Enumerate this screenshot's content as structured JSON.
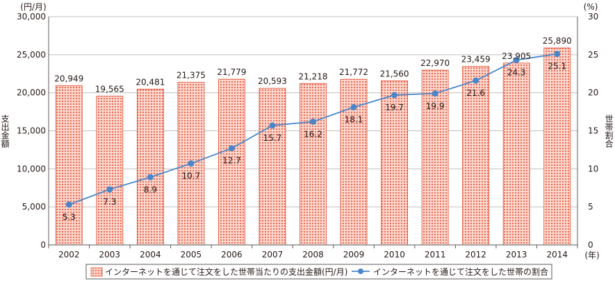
{
  "chart_data": {
    "type": "bar",
    "categories": [
      "2002",
      "2003",
      "2004",
      "2005",
      "2006",
      "2007",
      "2008",
      "2009",
      "2010",
      "2011",
      "2012",
      "2013",
      "2014"
    ],
    "series": [
      {
        "name": "インターネットを通じて注文をした世帯当たりの支出金額(円/月)",
        "type": "bar",
        "axis": "left",
        "values": [
          20949,
          19565,
          20481,
          21375,
          21779,
          20593,
          21218,
          21772,
          21560,
          22970,
          23459,
          23905,
          25890
        ],
        "labels": [
          "20,949",
          "19,565",
          "20,481",
          "21,375",
          "21,779",
          "20,593",
          "21,218",
          "21,772",
          "21,560",
          "22,970",
          "23,459",
          "23,905",
          "25,890"
        ]
      },
      {
        "name": "インターネットを通じて注文をした世帯の割合",
        "type": "line",
        "axis": "right",
        "values": [
          5.3,
          7.3,
          8.9,
          10.7,
          12.7,
          15.7,
          16.2,
          18.1,
          19.7,
          19.9,
          21.6,
          24.3,
          25.1
        ],
        "labels": [
          "5.3",
          "7.3",
          "8.9",
          "10.7",
          "12.7",
          "15.7",
          "16.2",
          "18.1",
          "19.7",
          "19.9",
          "21.6",
          "24.3",
          "25.1"
        ]
      }
    ],
    "left_axis": {
      "unit": "(円/月)",
      "label": "支出金額",
      "range": [
        0,
        30000
      ],
      "ticks": [
        "0",
        "5,000",
        "10,000",
        "15,000",
        "20,000",
        "25,000",
        "30,000"
      ]
    },
    "right_axis": {
      "unit": "(%)",
      "label": "世帯割合",
      "range": [
        0,
        30
      ],
      "ticks": [
        "0",
        "5",
        "10",
        "15",
        "20",
        "25",
        "30"
      ]
    },
    "x_unit": "(年)",
    "grid": "horizontal",
    "legend_position": "bottom",
    "colors": {
      "bar_fill": "#fbd6cc",
      "bar_dot": "#e8492f",
      "bar_stroke": "#e8492f",
      "line": "#4a86c8",
      "marker": "#4a86c8",
      "grid": "#bfbfbf",
      "axis": "#595959",
      "text": "#231815"
    }
  }
}
